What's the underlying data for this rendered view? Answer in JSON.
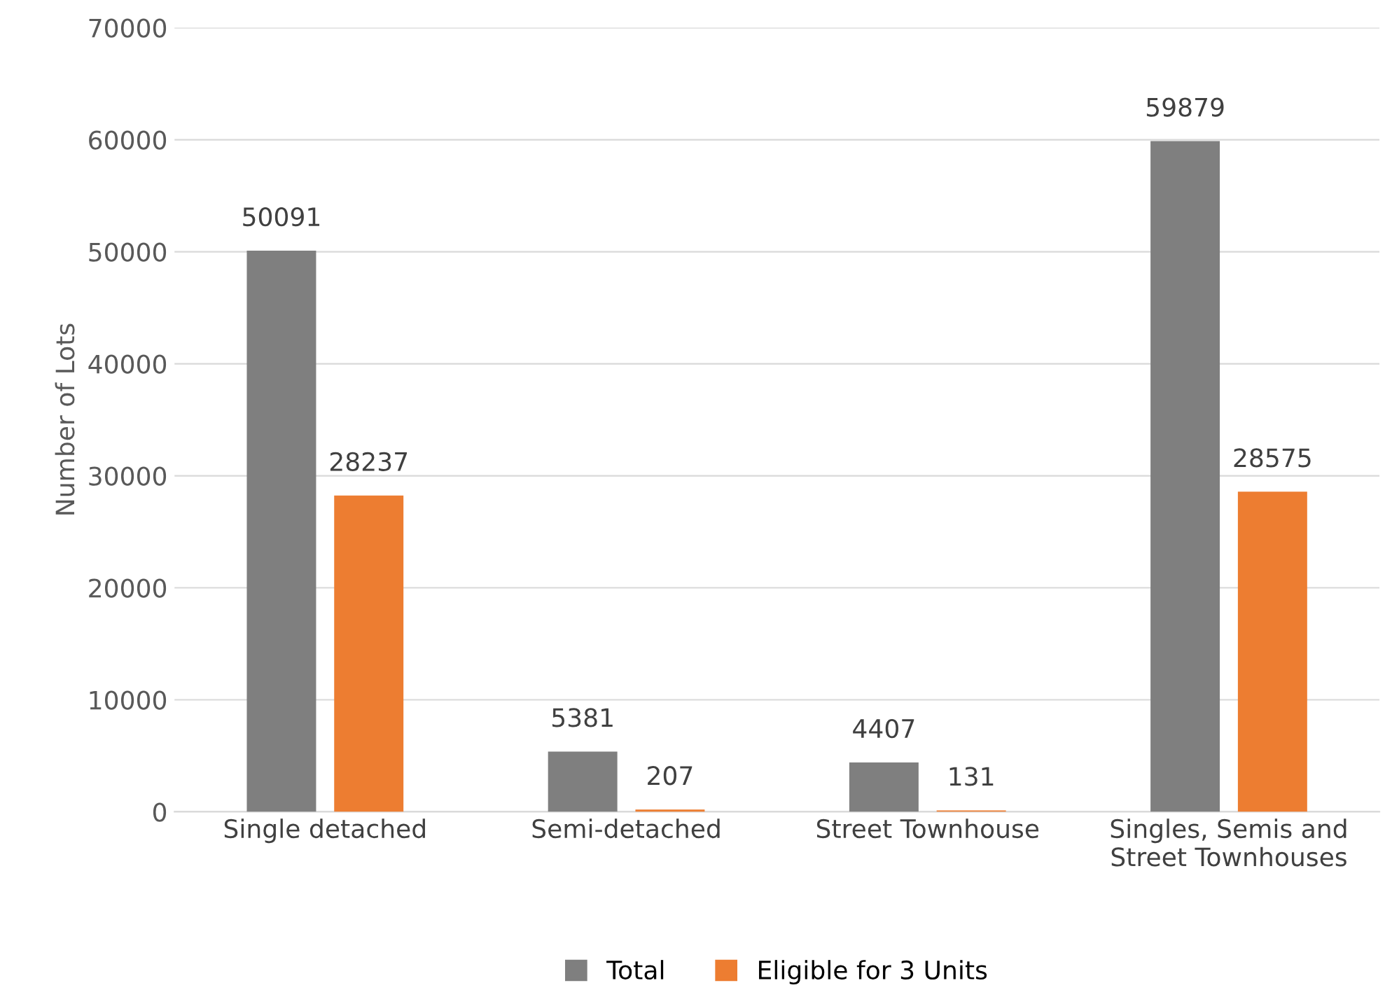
{
  "chart_data": {
    "type": "bar",
    "ylabel": "Number of Lots",
    "categories": [
      "Single detached",
      "Semi-detached",
      "Street Townhouse",
      "Singles, Semis and\nStreet Townhouses"
    ],
    "series": [
      {
        "name": "Total",
        "color": "#7f7f7f",
        "values": [
          50091,
          5381,
          4407,
          59879
        ]
      },
      {
        "name": "Eligible for 3 Units",
        "color": "#ed7d31",
        "values": [
          28237,
          207,
          131,
          28575
        ]
      }
    ],
    "ylim": [
      0,
      70000
    ],
    "yticks": [
      0,
      10000,
      20000,
      30000,
      40000,
      50000,
      60000,
      70000
    ],
    "grid": "y",
    "legend": "bottom",
    "data_labels": true
  }
}
